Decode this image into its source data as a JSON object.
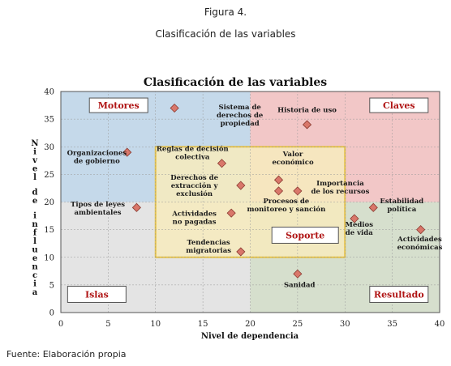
{
  "figure_number": "Figura 4.",
  "figure_title": "Clasificación de las variables",
  "source": "Fuente: Elaboración propia",
  "colors": {
    "motores": "#c5d9ea",
    "claves": "#f2c7c7",
    "islas": "#e4e4e4",
    "resultado": "#d6dfcd",
    "soporte": "#f7ebbd",
    "soporte_border": "#e6c34a",
    "marker": "#d9776a",
    "marker_stroke": "#8a3a30"
  },
  "chart_data": {
    "type": "scatter",
    "title": "Clasificación de las variables",
    "xlabel": "Nivel de dependencia",
    "ylabel": "Nivel de influencia",
    "xlim": [
      0,
      40
    ],
    "ylim": [
      0,
      40
    ],
    "xticks": [
      0,
      5,
      10,
      15,
      20,
      25,
      30,
      35,
      40
    ],
    "yticks": [
      0,
      5,
      10,
      15,
      20,
      25,
      30,
      35,
      40
    ],
    "quadrants": [
      {
        "label": "Motores",
        "x": [
          0,
          20
        ],
        "y": [
          20,
          40
        ],
        "color_key": "motores"
      },
      {
        "label": "Claves",
        "x": [
          20,
          40
        ],
        "y": [
          20,
          40
        ],
        "color_key": "claves"
      },
      {
        "label": "Islas",
        "x": [
          0,
          20
        ],
        "y": [
          0,
          20
        ],
        "color_key": "islas"
      },
      {
        "label": "Resultado",
        "x": [
          20,
          40
        ],
        "y": [
          0,
          20
        ],
        "color_key": "resultado"
      }
    ],
    "center_zone": {
      "label": "Soporte",
      "x": [
        10,
        30
      ],
      "y": [
        10,
        30
      ]
    },
    "points": [
      {
        "label": "Sistema de derechos de propiedad",
        "x": 12,
        "y": 37
      },
      {
        "label": "Historia de uso",
        "x": 26,
        "y": 34
      },
      {
        "label": "Organizaciones de gobierno",
        "x": 7,
        "y": 29
      },
      {
        "label": "Reglas de decisión colectiva",
        "x": 17,
        "y": 27
      },
      {
        "label": "Valor económico",
        "x": 23,
        "y": 24
      },
      {
        "label": "Derechos de extracción y exclusión",
        "x": 19,
        "y": 23
      },
      {
        "label": "Importancia de los recursos",
        "x": 25,
        "y": 22
      },
      {
        "label": "Procesos de monitoreo y sanción",
        "x": 23,
        "y": 22
      },
      {
        "label": "Tipos de leyes ambientales",
        "x": 8,
        "y": 19
      },
      {
        "label": "Estabilidad política",
        "x": 33,
        "y": 19
      },
      {
        "label": "Actividades no pagadas",
        "x": 18,
        "y": 18
      },
      {
        "label": "Medios de vida",
        "x": 31,
        "y": 17
      },
      {
        "label": "Actividades económicas",
        "x": 38,
        "y": 15
      },
      {
        "label": "Tendencias migratorias",
        "x": 19,
        "y": 11
      },
      {
        "label": "Sanidad",
        "x": 25,
        "y": 7
      }
    ]
  }
}
